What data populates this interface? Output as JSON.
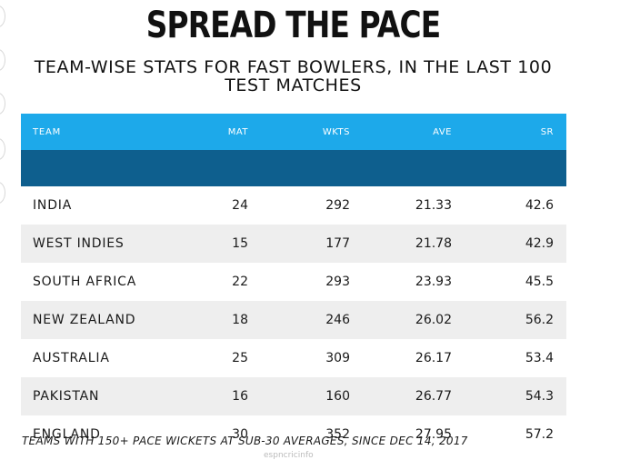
{
  "title": "SPREAD THE PACE",
  "subtitle": "TEAM-WISE STATS FOR FAST BOWLERS, IN THE LAST 100 TEST MATCHES",
  "footnote": "TEAMS WITH 150+ PACE WICKETS AT SUB-30 AVERAGES, SINCE DEC 14, 2017",
  "source": "espncricinfo",
  "colors": {
    "header_bg": "#1da9ea",
    "header_underline": "#0e5f8e",
    "alt_row_bg": "#eeeeee"
  },
  "table": {
    "columns": [
      "TEAM",
      "MAT",
      "WKTS",
      "AVE",
      "SR"
    ],
    "rows": [
      [
        "INDIA",
        "24",
        "292",
        "21.33",
        "42.6"
      ],
      [
        "WEST INDIES",
        "15",
        "177",
        "21.78",
        "42.9"
      ],
      [
        "SOUTH AFRICA",
        "22",
        "293",
        "23.93",
        "45.5"
      ],
      [
        "NEW ZEALAND",
        "18",
        "246",
        "26.02",
        "56.2"
      ],
      [
        "AUSTRALIA",
        "25",
        "309",
        "26.17",
        "53.4"
      ],
      [
        "PAKISTAN",
        "16",
        "160",
        "26.77",
        "54.3"
      ],
      [
        "ENGLAND",
        "30",
        "352",
        "27.95",
        "57.2"
      ]
    ]
  },
  "chart_data": {
    "type": "table",
    "title": "SPREAD THE PACE",
    "subtitle": "TEAM-WISE STATS FOR FAST BOWLERS, IN THE LAST 100 TEST MATCHES",
    "columns": [
      "TEAM",
      "MAT",
      "WKTS",
      "AVE",
      "SR"
    ],
    "rows": [
      {
        "TEAM": "INDIA",
        "MAT": 24,
        "WKTS": 292,
        "AVE": 21.33,
        "SR": 42.6
      },
      {
        "TEAM": "WEST INDIES",
        "MAT": 15,
        "WKTS": 177,
        "AVE": 21.78,
        "SR": 42.9
      },
      {
        "TEAM": "SOUTH AFRICA",
        "MAT": 22,
        "WKTS": 293,
        "AVE": 23.93,
        "SR": 45.5
      },
      {
        "TEAM": "NEW ZEALAND",
        "MAT": 18,
        "WKTS": 246,
        "AVE": 26.02,
        "SR": 56.2
      },
      {
        "TEAM": "AUSTRALIA",
        "MAT": 25,
        "WKTS": 309,
        "AVE": 26.17,
        "SR": 53.4
      },
      {
        "TEAM": "PAKISTAN",
        "MAT": 16,
        "WKTS": 160,
        "AVE": 26.77,
        "SR": 54.3
      },
      {
        "TEAM": "ENGLAND",
        "MAT": 30,
        "WKTS": 352,
        "AVE": 27.95,
        "SR": 57.2
      }
    ],
    "footnote": "TEAMS WITH 150+ PACE WICKETS AT SUB-30 AVERAGES, SINCE DEC 14, 2017"
  }
}
